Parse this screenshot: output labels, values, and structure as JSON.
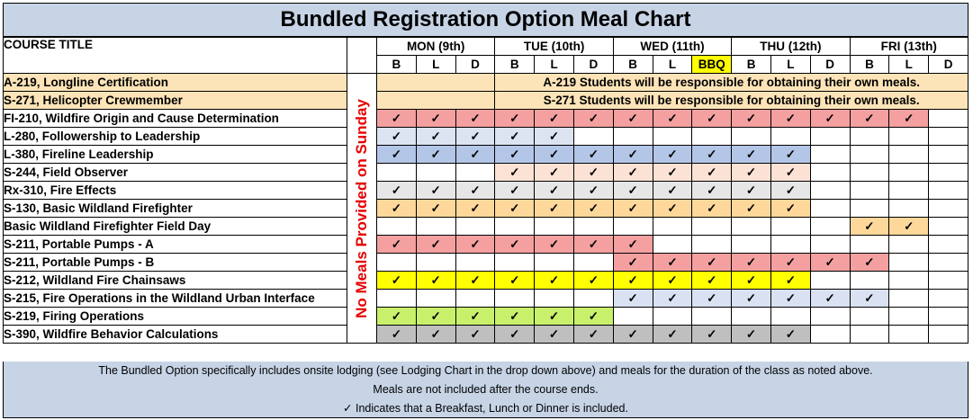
{
  "title": "Bundled Registration Option Meal Chart",
  "course_header": "COURSE TITLE",
  "vertical_note": "No Meals Provided on Sunday",
  "days": [
    "MON (9th)",
    "TUE (10th)",
    "WED (11th)",
    "THU (12th)",
    "FRI (13th)"
  ],
  "meals": [
    "B",
    "L",
    "D",
    "B",
    "L",
    "D",
    "B",
    "L",
    "BBQ",
    "B",
    "L",
    "D",
    "B",
    "L",
    "D"
  ],
  "check_mark": "✓",
  "colors": {
    "header_bg": "#c7d4e6",
    "note_bg": "#fce4b8",
    "bbq_bg": "#ffff00",
    "vertical_text": "#e60000",
    "red": "#f4a0a0",
    "blue": "#b4c6e7",
    "peach": "#fbe2d5",
    "gray_light": "#e7e6e6",
    "orange": "#fdd89a",
    "yellow": "#ffff00",
    "lavender": "#d9e1f2",
    "lime": "#c9f06b",
    "gray": "#bfbfbf"
  },
  "courses": [
    {
      "name": "A-219, Longline Certification",
      "note": "A-219 Students will be responsible for obtaining their own meals.",
      "name_bg": "#fce4b8"
    },
    {
      "name": "S-271, Helicopter Crewmember",
      "note": "S-271 Students will be responsible for obtaining their own meals.",
      "name_bg": "#fce4b8"
    },
    {
      "name": "FI-210, Wildfire Origin and Cause Determination",
      "meals": [
        1,
        1,
        1,
        1,
        1,
        1,
        1,
        1,
        1,
        1,
        1,
        1,
        1,
        1,
        0
      ],
      "color": "#f4a0a0"
    },
    {
      "name": "L-280, Followership to Leadership",
      "meals": [
        1,
        1,
        1,
        1,
        1,
        0,
        0,
        0,
        0,
        0,
        0,
        0,
        0,
        0,
        0
      ],
      "color": "#dce3f1"
    },
    {
      "name": "L-380, Fireline Leadership",
      "meals": [
        1,
        1,
        1,
        1,
        1,
        1,
        1,
        1,
        1,
        1,
        1,
        0,
        0,
        0,
        0
      ],
      "color": "#b4c6e7"
    },
    {
      "name": "S-244, Field Observer",
      "meals": [
        0,
        0,
        0,
        1,
        1,
        1,
        1,
        1,
        1,
        1,
        1,
        0,
        0,
        0,
        0
      ],
      "color": "#fbe2d5"
    },
    {
      "name": "Rx-310, Fire Effects",
      "meals": [
        1,
        1,
        1,
        1,
        1,
        1,
        1,
        1,
        1,
        1,
        1,
        0,
        0,
        0,
        0
      ],
      "color": "#e7e6e6"
    },
    {
      "name": "S-130, Basic Wildland Firefighter",
      "meals": [
        1,
        1,
        1,
        1,
        1,
        1,
        1,
        1,
        1,
        1,
        1,
        0,
        0,
        0,
        0
      ],
      "color": "#fdd89a"
    },
    {
      "name": "Basic Wildland Firefighter Field Day",
      "meals": [
        0,
        0,
        0,
        0,
        0,
        0,
        0,
        0,
        0,
        0,
        0,
        0,
        1,
        1,
        0
      ],
      "color": "#fdd89a"
    },
    {
      "name": "S-211, Portable Pumps - A",
      "meals": [
        1,
        1,
        1,
        1,
        1,
        1,
        1,
        0,
        0,
        0,
        0,
        0,
        0,
        0,
        0
      ],
      "color": "#f4a0a0"
    },
    {
      "name": "S-211, Portable Pumps - B",
      "meals": [
        0,
        0,
        0,
        0,
        0,
        0,
        1,
        1,
        1,
        1,
        1,
        1,
        1,
        0,
        0
      ],
      "color": "#f4a0a0"
    },
    {
      "name": "S-212, Wildland Fire Chainsaws",
      "meals": [
        1,
        1,
        1,
        1,
        1,
        1,
        1,
        1,
        1,
        1,
        1,
        0,
        0,
        0,
        0
      ],
      "color": "#ffff00"
    },
    {
      "name": "S-215, Fire Operations in the Wildland Urban Interface",
      "meals": [
        0,
        0,
        0,
        0,
        0,
        0,
        1,
        1,
        1,
        1,
        1,
        1,
        1,
        0,
        0
      ],
      "color": "#d9e1f2"
    },
    {
      "name": "S-219, Firing Operations",
      "meals": [
        1,
        1,
        1,
        1,
        1,
        1,
        0,
        0,
        0,
        0,
        0,
        0,
        0,
        0,
        0
      ],
      "color": "#c9f06b"
    },
    {
      "name": "S-390, Wildfire Behavior Calculations",
      "meals": [
        1,
        1,
        1,
        1,
        1,
        1,
        1,
        1,
        1,
        1,
        1,
        0,
        0,
        0,
        0
      ],
      "color": "#bfbfbf"
    }
  ],
  "footer": {
    "line1": "The Bundled Option specifically includes onsite lodging (see Lodging Chart in the drop down above) and meals for the duration of the class as noted above.",
    "line2": "Meals are not included after the course ends.",
    "line3": "✓ Indicates that a Breakfast, Lunch or Dinner is included."
  }
}
